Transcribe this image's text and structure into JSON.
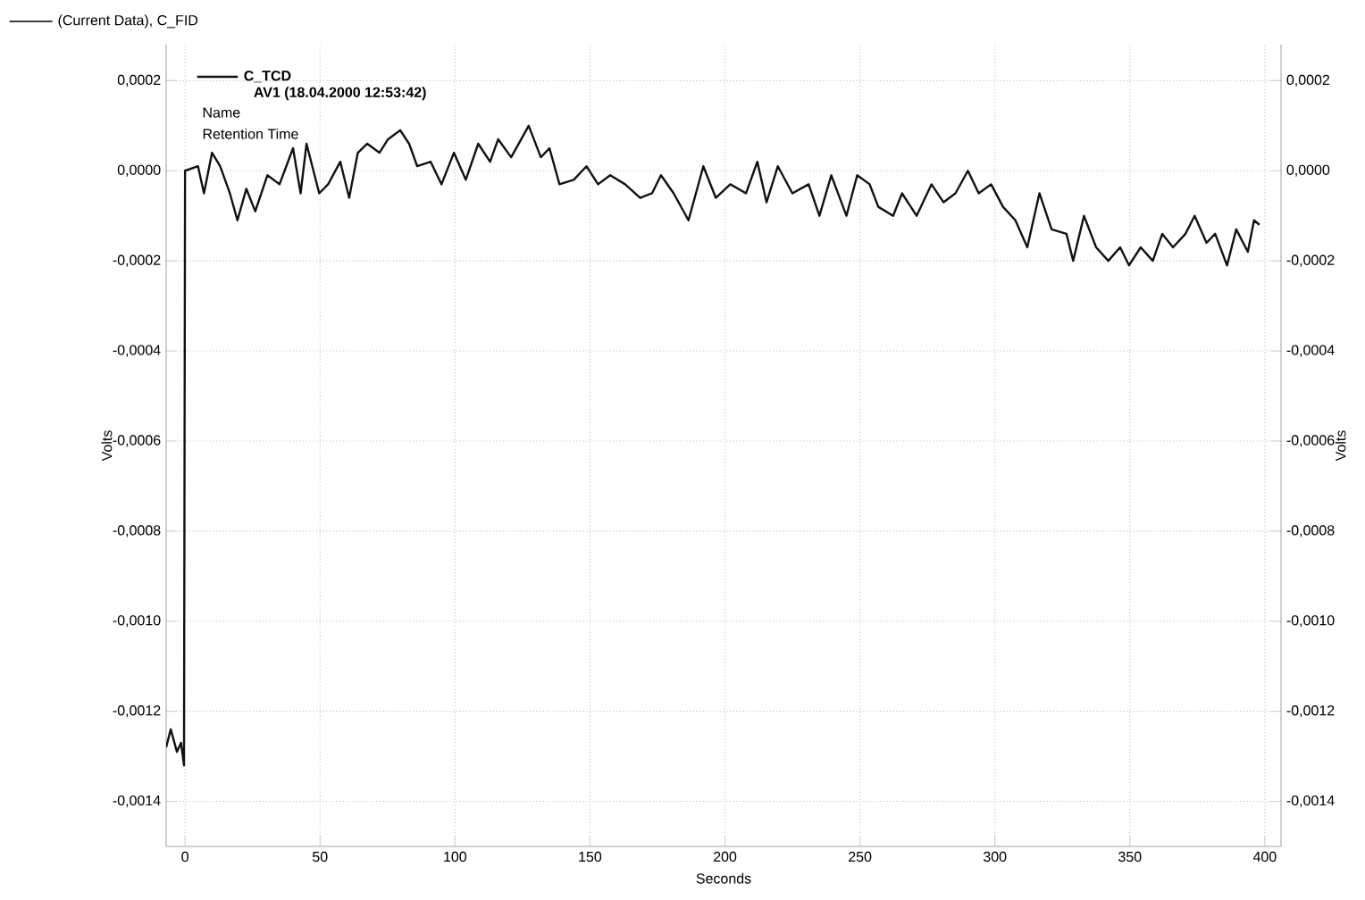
{
  "chart_data": {
    "type": "line",
    "title": "(Current Data), C_FID",
    "xlabel": "Seconds",
    "ylabel": "Volts",
    "y2label": "Volts",
    "annotations": [
      "AV1 (18.04.2000 12:53:42)",
      "Name",
      "Retention Time"
    ],
    "xlim": [
      -7,
      406
    ],
    "xticks": [
      0,
      50,
      100,
      150,
      200,
      250,
      300,
      350,
      400
    ],
    "ylim": [
      -0.0015,
      0.00028
    ],
    "yticks": [
      {
        "value": -0.0014,
        "label": "-0,0014"
      },
      {
        "value": -0.0012,
        "label": "-0,0012"
      },
      {
        "value": -0.001,
        "label": "-0,0010"
      },
      {
        "value": -0.0008,
        "label": "-0,0008"
      },
      {
        "value": -0.0006,
        "label": "-0,0006"
      },
      {
        "value": -0.0004,
        "label": "-0,0004"
      },
      {
        "value": -0.0002,
        "label": "-0,0002"
      },
      {
        "value": 0,
        "label": "0,0000"
      },
      {
        "value": 0.0002,
        "label": "0,0002"
      }
    ],
    "y2lim": [
      -0.0015,
      0.00028
    ],
    "y2ticks": [
      {
        "value": -0.0014,
        "label": "-0,0014"
      },
      {
        "value": -0.0012,
        "label": "-0,0012"
      },
      {
        "value": -0.001,
        "label": "-0,0010"
      },
      {
        "value": -0.0008,
        "label": "-0,0008"
      },
      {
        "value": -0.0006,
        "label": "-0,0006"
      },
      {
        "value": -0.0004,
        "label": "-0,0004"
      },
      {
        "value": -0.0002,
        "label": "-0,0002"
      },
      {
        "value": 0,
        "label": "0,0000"
      },
      {
        "value": 0.0002,
        "label": "0,0002"
      }
    ],
    "grid": true,
    "legend": "top left",
    "marker": "none",
    "line_style": "solid",
    "series": [
      {
        "name": "C_TCD",
        "color": "#111111",
        "x": [
          -7,
          -5.3,
          -3,
          -1.5,
          -0.4,
          0,
          4.8,
          7,
          10,
          13,
          16.6,
          19.4,
          22.7,
          26,
          30.5,
          35,
          40,
          42.8,
          45,
          49.7,
          53,
          57.5,
          60.8,
          64,
          67.5,
          72,
          75.2,
          79.7,
          83,
          86,
          91,
          95,
          99.6,
          104,
          108.6,
          113,
          116,
          120.8,
          127.3,
          131.8,
          135,
          138.7,
          144,
          148.7,
          153,
          157.5,
          163,
          168.6,
          173,
          176.3,
          181,
          186.5,
          192,
          196.6,
          202,
          207.8,
          212,
          215.4,
          219.6,
          225,
          231,
          235,
          239.4,
          245,
          249,
          253.6,
          256.8,
          262.3,
          265.6,
          271,
          276.5,
          281,
          285.4,
          290,
          294,
          298.6,
          303,
          307.6,
          312,
          316.5,
          321,
          326.5,
          329,
          333,
          337.5,
          342,
          346.4,
          349.7,
          354,
          358.5,
          362,
          366,
          370.6,
          374,
          378.4,
          381.6,
          386,
          389.4,
          393.7,
          396,
          398
        ],
        "values": [
          -0.00128,
          -0.00124,
          -0.00129,
          -0.00127,
          -0.00132,
          0.0,
          1e-05,
          -5e-05,
          4e-05,
          1e-05,
          -5e-05,
          -0.00011,
          -4e-05,
          -9e-05,
          -1e-05,
          -3e-05,
          5e-05,
          -5e-05,
          6e-05,
          -5e-05,
          -3e-05,
          2e-05,
          -6e-05,
          4e-05,
          6e-05,
          4e-05,
          7e-05,
          9e-05,
          6e-05,
          1e-05,
          2e-05,
          -3e-05,
          4e-05,
          -2e-05,
          6e-05,
          2e-05,
          7e-05,
          3e-05,
          0.0001,
          3e-05,
          5e-05,
          -3e-05,
          -2e-05,
          1e-05,
          -3e-05,
          -1e-05,
          -3e-05,
          -6e-05,
          -5e-05,
          -1e-05,
          -5e-05,
          -0.00011,
          1e-05,
          -6e-05,
          -3e-05,
          -5e-05,
          2e-05,
          -7e-05,
          1e-05,
          -5e-05,
          -3e-05,
          -0.0001,
          -1e-05,
          -0.0001,
          -1e-05,
          -3e-05,
          -8e-05,
          -0.0001,
          -5e-05,
          -0.0001,
          -3e-05,
          -7e-05,
          -5e-05,
          0.0,
          -5e-05,
          -3e-05,
          -8e-05,
          -0.00011,
          -0.00017,
          -5e-05,
          -0.00013,
          -0.00014,
          -0.0002,
          -0.0001,
          -0.00017,
          -0.0002,
          -0.00017,
          -0.00021,
          -0.00017,
          -0.0002,
          -0.00014,
          -0.00017,
          -0.00014,
          -0.0001,
          -0.00016,
          -0.00014,
          -0.00021,
          -0.00013,
          -0.00018,
          -0.00011,
          -0.00012
        ]
      }
    ]
  }
}
